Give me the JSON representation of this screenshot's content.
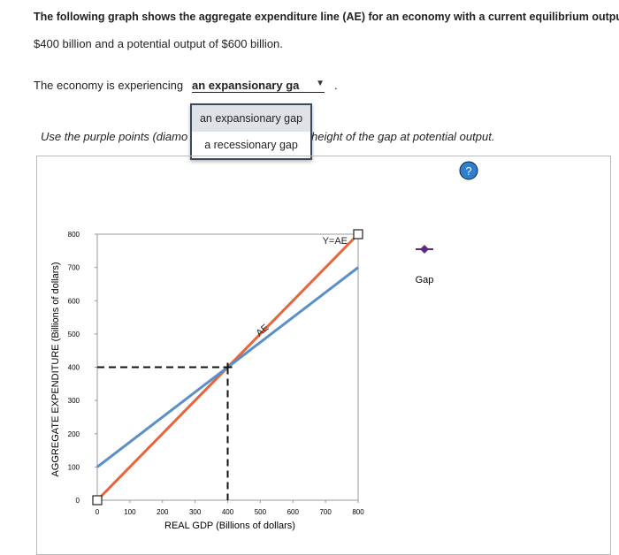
{
  "question": {
    "line1": "The following graph shows the aggregate expenditure line (AE) for an economy with a current equilibrium output of",
    "line2": "$400 billion and a potential output of $600 billion."
  },
  "answer": {
    "prefix": "The economy is experiencing",
    "selected": "an expansionary ga",
    "suffix": ".",
    "options": [
      "an expansionary gap",
      "a recessionary gap"
    ]
  },
  "instruction": {
    "left": "Use the purple points (diamo",
    "right": "height of the gap at potential output."
  },
  "help": "?",
  "chart_data": {
    "type": "line",
    "x_label": "REAL GDP (Billions of dollars)",
    "y_label": "AGGREGATE EXPENDITURE (Billions of dollars)",
    "xlim": [
      0,
      800
    ],
    "ylim": [
      0,
      800
    ],
    "xticks": [
      0,
      100,
      200,
      300,
      400,
      500,
      600,
      700,
      800
    ],
    "yticks": [
      0,
      100,
      200,
      300,
      400,
      500,
      600,
      700,
      800
    ],
    "series": [
      {
        "name": "Y=AE",
        "color": "#e8643a",
        "x": [
          0,
          800
        ],
        "values": [
          0,
          800
        ]
      },
      {
        "name": "AE",
        "color": "#5b8fc7",
        "x": [
          0,
          400,
          800
        ],
        "values": [
          100,
          400,
          700
        ]
      }
    ],
    "equilibrium": {
      "x": 400,
      "y": 400
    },
    "tools": [
      {
        "name": "Gap",
        "color": "#5a2d82"
      }
    ]
  }
}
